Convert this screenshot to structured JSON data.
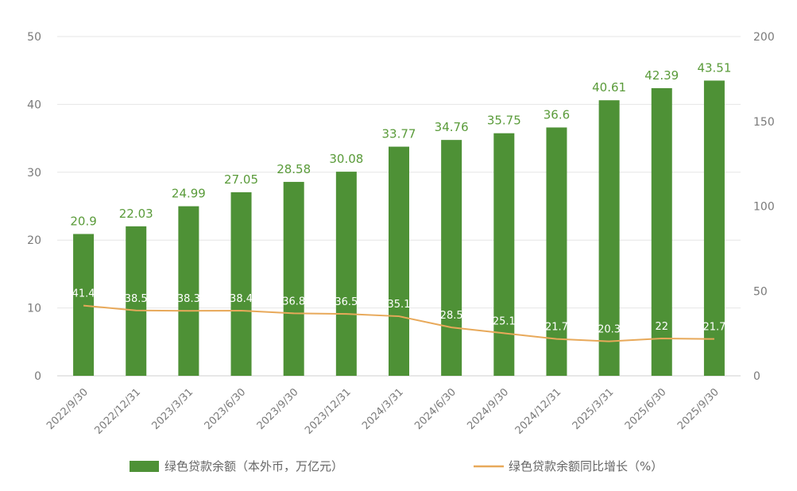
{
  "chart_data": {
    "type": "bar",
    "categories": [
      "2022/9/30",
      "2022/12/31",
      "2023/3/31",
      "2023/6/30",
      "2023/9/30",
      "2023/12/31",
      "2024/3/31",
      "2024/6/30",
      "2024/9/30",
      "2024/12/31",
      "2025/3/31",
      "2025/6/30",
      "2025/9/30"
    ],
    "series": [
      {
        "name": "绿色贷款余额（本外币，万亿元）",
        "type": "bar",
        "axis": "left",
        "color": "#4e9136",
        "values": [
          20.9,
          22.03,
          24.99,
          27.05,
          28.58,
          30.08,
          33.77,
          34.76,
          35.75,
          36.6,
          40.61,
          42.39,
          43.51
        ],
        "labels": [
          "20.9",
          "22.03",
          "24.99",
          "27.05",
          "28.58",
          "30.08",
          "33.77",
          "34.76",
          "35.75",
          "36.6",
          "40.61",
          "42.39",
          "43.51"
        ]
      },
      {
        "name": "绿色贷款余额同比增长（%）",
        "type": "line",
        "axis": "right",
        "color": "#e8a95a",
        "values": [
          41.4,
          38.5,
          38.3,
          38.4,
          36.8,
          36.5,
          35.1,
          28.5,
          25.1,
          21.7,
          20.3,
          22,
          21.7
        ],
        "labels": [
          "41.4",
          "38.5",
          "38.3",
          "38.4",
          "36.8",
          "36.5",
          "35.1",
          "28.5",
          "25.1",
          "21.7",
          "20.3",
          "22",
          "21.7"
        ]
      }
    ],
    "y_left": {
      "range": [
        0,
        50
      ],
      "ticks": [
        "0",
        "10",
        "20",
        "30",
        "40",
        "50"
      ]
    },
    "y_right": {
      "range": [
        0,
        200
      ],
      "ticks": [
        "0",
        "50",
        "100",
        "150",
        "200"
      ]
    },
    "grid": true,
    "legend_position": "bottom",
    "title": "",
    "xlabel": "",
    "ylabel": ""
  }
}
